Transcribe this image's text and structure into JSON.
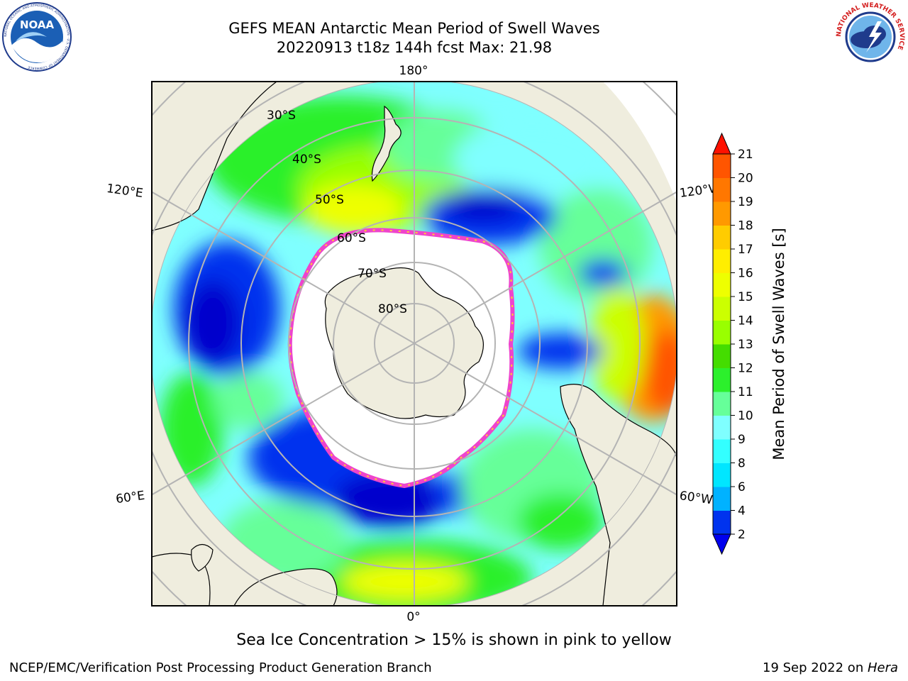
{
  "header": {
    "title_line1": "GEFS MEAN Antarctic Mean Period of Swell Waves",
    "title_line2": "20220913 t18z 144h fcst   Max: 21.98"
  },
  "logos": {
    "left": {
      "name": "noaa-logo",
      "text": "NOAA",
      "ring_text": "NATIONAL OCEANIC AND ATMOSPHERIC ADMINISTRATION · U.S. DEPARTMENT OF COMMERCE"
    },
    "right": {
      "name": "nws-logo",
      "ring_text": "NATIONAL WEATHER SERVICE"
    }
  },
  "map": {
    "projection": "south-polar-stereographic",
    "land_color": "#efedde",
    "ocean_missing_color": "#ffffff",
    "grid_color": "#b4b4b4",
    "longitude_labels": [
      "180°",
      "120°E",
      "120°W",
      "60°E",
      "60°W",
      "0°"
    ],
    "latitude_labels": [
      "30°S",
      "40°S",
      "50°S",
      "60°S",
      "70°S",
      "80°S"
    ]
  },
  "colorbar": {
    "label": "Mean Period of Swell Waves [s]",
    "ticks": [
      "2",
      "4",
      "6",
      "8",
      "9",
      "10",
      "11",
      "12",
      "13",
      "14",
      "15",
      "16",
      "17",
      "18",
      "19",
      "20",
      "21"
    ],
    "colors": [
      "#0033ee",
      "#00b2ff",
      "#00e6ff",
      "#33ffff",
      "#7fffff",
      "#66ff99",
      "#2cf02c",
      "#44dd00",
      "#99ff00",
      "#ccff00",
      "#eeff00",
      "#ffee00",
      "#ffcc00",
      "#ff9900",
      "#ff7700",
      "#ff5500",
      "#ff2200"
    ],
    "under_color": "#0000ee",
    "over_color": "#ff1100"
  },
  "sea_ice_note": "Sea Ice Concentration > 15% is shown in pink to yellow",
  "footer": {
    "left": "NCEP/EMC/Verification Post Processing Product Generation Branch",
    "right_prefix": "19 Sep 2022 on ",
    "right_machine": "Hera"
  }
}
